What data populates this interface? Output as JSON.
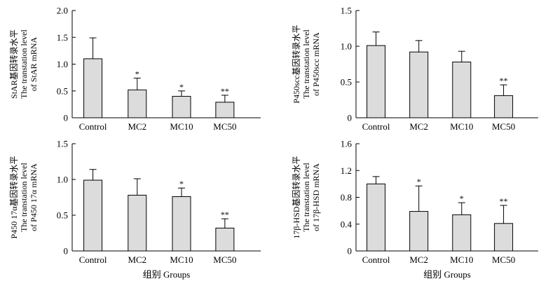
{
  "chart_data": [
    {
      "type": "bar",
      "ylabel_lines": [
        "StAR基因转录水平",
        "The transtation level",
        "of StAR mRNA"
      ],
      "categories": [
        "Control",
        "MC2",
        "MC10",
        "MC50"
      ],
      "values": [
        1.1,
        0.52,
        0.4,
        0.29
      ],
      "errors": [
        0.39,
        0.22,
        0.1,
        0.13
      ],
      "significance": [
        "",
        "*",
        "*",
        "**"
      ],
      "ylim": [
        0,
        2.0
      ],
      "yticks": [
        "0",
        "0.5",
        "1.0",
        "1.5",
        "2.0"
      ],
      "xlabel": ""
    },
    {
      "type": "bar",
      "ylabel_lines": [
        "P450scc基因转录水平",
        "The transtation level",
        "of P450scc mRNA"
      ],
      "categories": [
        "Control",
        "MC2",
        "MC10",
        "MC50"
      ],
      "values": [
        1.01,
        0.92,
        0.78,
        0.31
      ],
      "errors": [
        0.19,
        0.16,
        0.15,
        0.15
      ],
      "significance": [
        "",
        "",
        "",
        "**"
      ],
      "ylim": [
        0,
        1.5
      ],
      "yticks": [
        "0",
        "0.5",
        "1.0",
        "1.5"
      ],
      "xlabel": ""
    },
    {
      "type": "bar",
      "ylabel_lines": [
        "P450 17α基因转录水平",
        "The transtation level",
        "of P450 17α mRNA"
      ],
      "categories": [
        "Control",
        "MC2",
        "MC10",
        "MC50"
      ],
      "values": [
        0.99,
        0.78,
        0.76,
        0.32
      ],
      "errors": [
        0.15,
        0.23,
        0.12,
        0.13
      ],
      "significance": [
        "",
        "",
        "*",
        "**"
      ],
      "ylim": [
        0,
        1.5
      ],
      "yticks": [
        "0",
        "0.5",
        "1.0",
        "1.5"
      ],
      "xlabel": "组别 Groups"
    },
    {
      "type": "bar",
      "ylabel_lines": [
        "17β-HSD基因转录水平",
        "The transtation level",
        "of 17β-HSD mRNA"
      ],
      "categories": [
        "Control",
        "MC2",
        "MC10",
        "MC50"
      ],
      "values": [
        1.0,
        0.59,
        0.54,
        0.41
      ],
      "errors": [
        0.11,
        0.38,
        0.18,
        0.27
      ],
      "significance": [
        "",
        "*",
        "*",
        "**"
      ],
      "ylim": [
        0,
        1.6
      ],
      "yticks": [
        "0",
        "0.4",
        "0.8",
        "1.2",
        "1.6"
      ],
      "xlabel": "组别 Groups"
    }
  ]
}
